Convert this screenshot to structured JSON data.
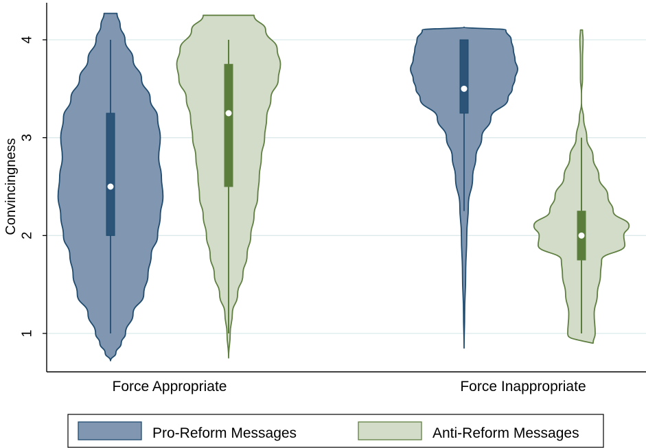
{
  "chart_data": {
    "type": "violin",
    "ylabel": "Convincingness",
    "ylim": [
      0.6,
      4.4
    ],
    "yticks": [
      1,
      2,
      3,
      4
    ],
    "grid": true,
    "legend_position": "bottom",
    "categories": [
      "Force Appropriate",
      "Force Inappropriate"
    ],
    "series": [
      {
        "name": "Pro-Reform Messages",
        "fill": "#8197b1",
        "edge": "#1e4a6e",
        "box": "#2b5478",
        "groups": [
          {
            "median": 2.5,
            "q1": 2.0,
            "q3": 3.25,
            "whisker_low": 1.0,
            "whisker_high": 4.0,
            "density": [
              [
                0.72,
                0.0
              ],
              [
                0.8,
                0.1
              ],
              [
                0.9,
                0.2
              ],
              [
                1.0,
                0.28
              ],
              [
                1.2,
                0.42
              ],
              [
                1.4,
                0.62
              ],
              [
                1.6,
                0.7
              ],
              [
                1.8,
                0.76
              ],
              [
                2.0,
                0.88
              ],
              [
                2.2,
                0.93
              ],
              [
                2.4,
                0.98
              ],
              [
                2.6,
                0.95
              ],
              [
                2.8,
                0.9
              ],
              [
                3.0,
                0.93
              ],
              [
                3.2,
                0.88
              ],
              [
                3.4,
                0.74
              ],
              [
                3.6,
                0.58
              ],
              [
                3.8,
                0.42
              ],
              [
                4.0,
                0.27
              ],
              [
                4.15,
                0.18
              ],
              [
                4.27,
                0.12
              ]
            ]
          },
          {
            "median": 3.5,
            "q1": 3.25,
            "q3": 4.0,
            "whisker_low": 2.25,
            "whisker_high": 4.0,
            "density": [
              [
                0.85,
                0.0
              ],
              [
                1.2,
                0.01
              ],
              [
                1.6,
                0.03
              ],
              [
                2.0,
                0.05
              ],
              [
                2.3,
                0.08
              ],
              [
                2.6,
                0.16
              ],
              [
                2.8,
                0.22
              ],
              [
                3.0,
                0.33
              ],
              [
                3.2,
                0.5
              ],
              [
                3.4,
                0.82
              ],
              [
                3.5,
                0.9
              ],
              [
                3.6,
                0.95
              ],
              [
                3.7,
                1.0
              ],
              [
                3.8,
                0.95
              ],
              [
                3.9,
                0.92
              ],
              [
                4.0,
                0.88
              ],
              [
                4.1,
                0.78
              ],
              [
                4.13,
                0.0
              ]
            ]
          }
        ]
      },
      {
        "name": "Anti-Reform Messages",
        "fill": "#d3dbc9",
        "edge": "#5e7f40",
        "box": "#5b7d3b",
        "groups": [
          {
            "median": 3.25,
            "q1": 2.5,
            "q3": 3.75,
            "whisker_low": 1.0,
            "whisker_high": 4.0,
            "density": [
              [
                0.75,
                0.0
              ],
              [
                1.0,
                0.03
              ],
              [
                1.2,
                0.07
              ],
              [
                1.4,
                0.17
              ],
              [
                1.6,
                0.27
              ],
              [
                1.8,
                0.35
              ],
              [
                2.0,
                0.42
              ],
              [
                2.2,
                0.48
              ],
              [
                2.4,
                0.55
              ],
              [
                2.6,
                0.58
              ],
              [
                2.8,
                0.62
              ],
              [
                3.0,
                0.68
              ],
              [
                3.2,
                0.72
              ],
              [
                3.4,
                0.8
              ],
              [
                3.6,
                0.94
              ],
              [
                3.75,
                0.98
              ],
              [
                3.9,
                0.92
              ],
              [
                4.1,
                0.7
              ],
              [
                4.25,
                0.48
              ]
            ]
          },
          {
            "median": 2.0,
            "q1": 1.75,
            "q3": 2.25,
            "whisker_low": 1.0,
            "whisker_high": 3.0,
            "density": [
              [
                0.9,
                0.22
              ],
              [
                1.0,
                0.26
              ],
              [
                1.2,
                0.24
              ],
              [
                1.4,
                0.3
              ],
              [
                1.6,
                0.36
              ],
              [
                1.75,
                0.38
              ],
              [
                1.9,
                0.82
              ],
              [
                2.0,
                0.8
              ],
              [
                2.1,
                0.9
              ],
              [
                2.25,
                0.6
              ],
              [
                2.4,
                0.5
              ],
              [
                2.6,
                0.33
              ],
              [
                2.8,
                0.22
              ],
              [
                3.0,
                0.1
              ],
              [
                3.2,
                0.04
              ],
              [
                3.35,
                0.0
              ],
              [
                3.45,
                0.0
              ],
              [
                3.6,
                0.02
              ],
              [
                3.8,
                0.02
              ],
              [
                4.0,
                0.03
              ],
              [
                4.1,
                0.02
              ]
            ]
          }
        ]
      }
    ]
  }
}
